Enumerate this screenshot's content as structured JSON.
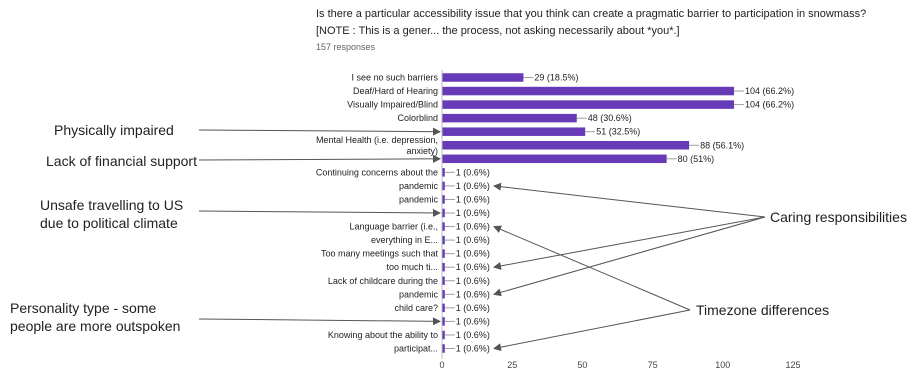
{
  "question": {
    "title": "Is there a particular accessibility issue that you think can create a pragmatic barrier to participation in snowmass? [NOTE : This is a gener... the process, not asking necessarily about *you*.]",
    "responses": "157 responses"
  },
  "colors": {
    "bar": "#673ab7",
    "axis": "#bdbdbd",
    "text": "#202124",
    "arrow": "#555555"
  },
  "chart_data": {
    "type": "bar",
    "orientation": "horizontal",
    "xlim": [
      0,
      125
    ],
    "xticks": [
      "0",
      "25",
      "50",
      "75",
      "100",
      "125"
    ],
    "grid": false,
    "bars": [
      {
        "label": [
          "I see no such barriers"
        ],
        "value": 29,
        "display": "29 (18.5%)"
      },
      {
        "label": [
          "Deaf/Hard of Hearing"
        ],
        "value": 104,
        "display": "104 (66.2%)"
      },
      {
        "label": [
          "Visually Impaired/Blind"
        ],
        "value": 104,
        "display": "104 (66.2%)"
      },
      {
        "label": [
          "Colorblind"
        ],
        "value": 48,
        "display": "48 (30.6%)"
      },
      {
        "label": [
          ""
        ],
        "value": 51,
        "display": "51 (32.5%)"
      },
      {
        "label": [
          "Mental Health (i.e. depression,",
          "anxiety)"
        ],
        "value": 88,
        "display": "88 (56.1%)"
      },
      {
        "label": [
          ""
        ],
        "value": 80,
        "display": "80 (51%)"
      },
      {
        "label": [
          "Continuing concerns about the"
        ],
        "value": 1,
        "display": "1 (0.6%)"
      },
      {
        "label": [
          "pandemic"
        ],
        "value": 1,
        "display": "1 (0.6%)"
      },
      {
        "label": [
          "pandemic"
        ],
        "value": 1,
        "display": "1 (0.6%)"
      },
      {
        "label": [
          ""
        ],
        "value": 1,
        "display": "1 (0.6%)"
      },
      {
        "label": [
          "Language barrier (i.e.,"
        ],
        "value": 1,
        "display": "1 (0.6%)"
      },
      {
        "label": [
          "everything in E..."
        ],
        "value": 1,
        "display": "1 (0.6%)"
      },
      {
        "label": [
          "Too many meetings such that"
        ],
        "value": 1,
        "display": "1 (0.6%)"
      },
      {
        "label": [
          "too much ti..."
        ],
        "value": 1,
        "display": "1 (0.6%)"
      },
      {
        "label": [
          "Lack of childcare during the"
        ],
        "value": 1,
        "display": "1 (0.6%)"
      },
      {
        "label": [
          "pandemic"
        ],
        "value": 1,
        "display": "1 (0.6%)"
      },
      {
        "label": [
          "child care?"
        ],
        "value": 1,
        "display": "1 (0.6%)"
      },
      {
        "label": [
          ""
        ],
        "value": 1,
        "display": "1 (0.6%)"
      },
      {
        "label": [
          "Knowing about the ability to"
        ],
        "value": 1,
        "display": "1 (0.6%)"
      },
      {
        "label": [
          "participat..."
        ],
        "value": 1,
        "display": "1 (0.6%)"
      }
    ]
  },
  "annotations": {
    "left": [
      {
        "lines": [
          "Physically impaired"
        ],
        "target_bar": 4
      },
      {
        "lines": [
          "Lack of financial support"
        ],
        "target_bar": 6
      },
      {
        "lines": [
          "Unsafe travelling to US",
          "due to political climate"
        ],
        "target_bar": 10
      },
      {
        "lines": [
          "Personality type - some",
          "people are more outspoken"
        ],
        "target_bar": 18
      }
    ],
    "right": [
      {
        "lines": [
          "Caring responsibilities"
        ],
        "target_bars": [
          8,
          14,
          16
        ]
      },
      {
        "lines": [
          "Timezone differences"
        ],
        "target_bars": [
          11,
          20
        ]
      }
    ]
  }
}
